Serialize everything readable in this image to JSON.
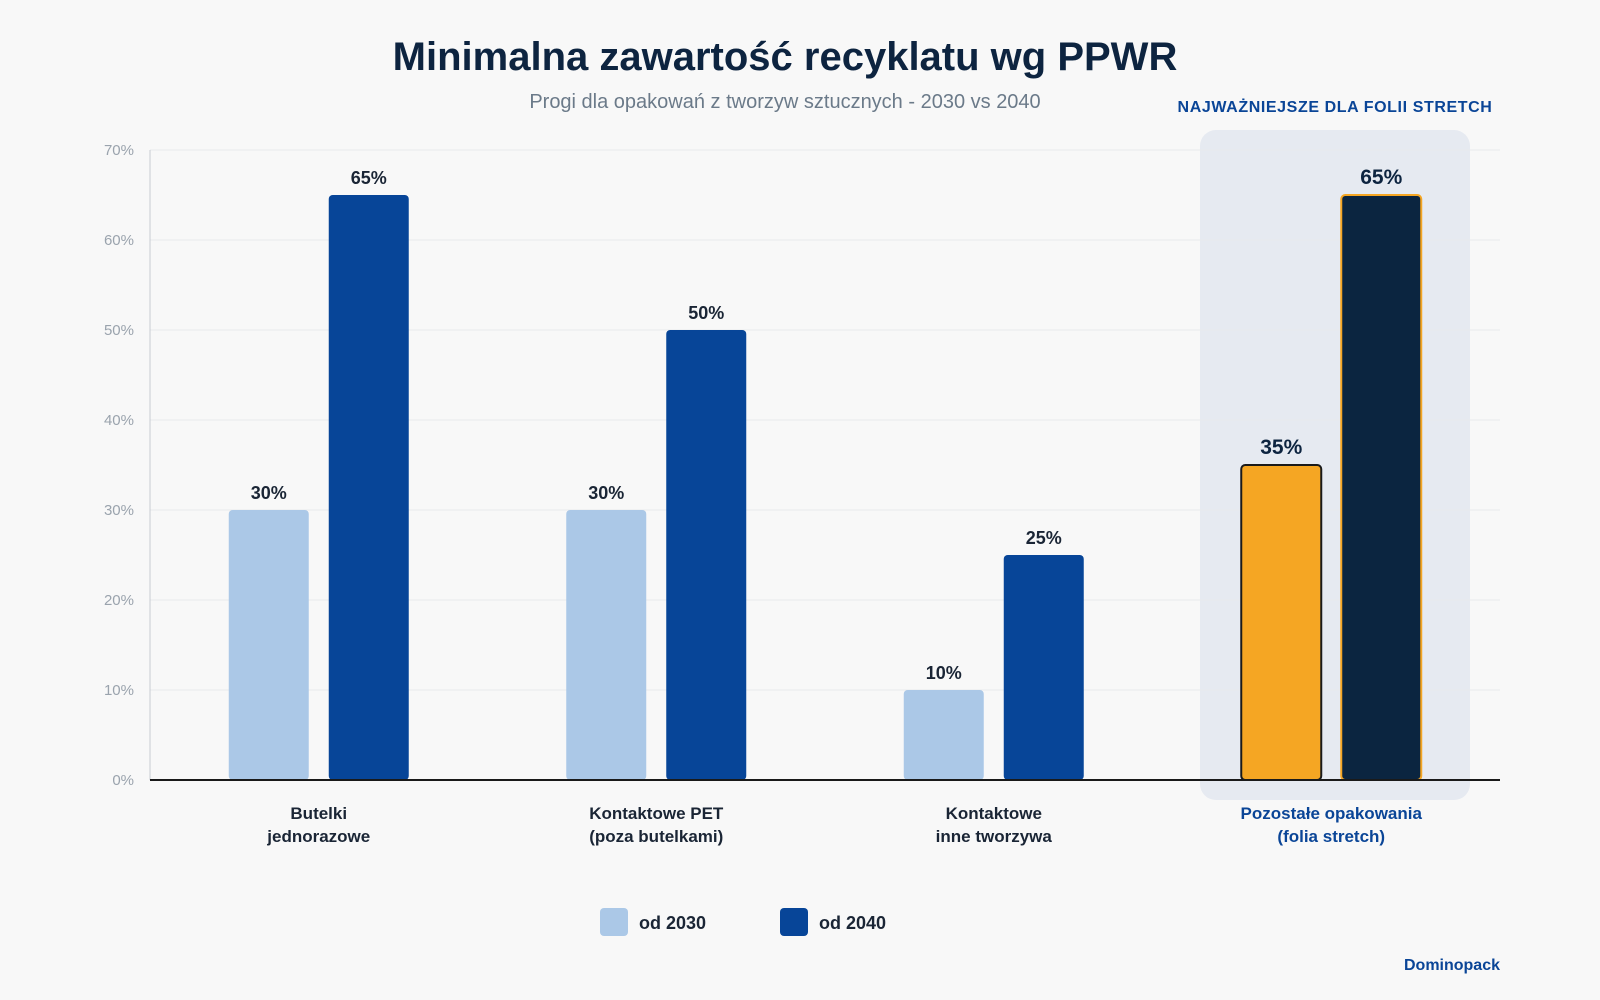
{
  "header": {
    "title": "Minimalna zawartość recyklatu wg PPWR",
    "subtitle": "Progi dla opakowań z tworzyw sztucznych - 2030 vs 2040"
  },
  "highlight": {
    "caption": "NAJWAŻNIEJSZE DLA FOLII STRETCH",
    "category_index": 3,
    "colors": {
      "series_2030": "#f5a623",
      "series_2040": "#0b2540",
      "border": "#1a1a1a",
      "border_2040": "#f5a623",
      "band": "#e6eaf1",
      "label": "#0a4597"
    }
  },
  "legend": {
    "placement": "bottom-center",
    "items": [
      {
        "label": "od 2030",
        "color": "#abc8e7"
      },
      {
        "label": "od 2040",
        "color": "#074598"
      }
    ]
  },
  "brand": "Dominopack",
  "chart_data": {
    "type": "bar",
    "title": "Minimalna zawartość recyklatu wg PPWR",
    "subtitle": "Progi dla opakowań z tworzyw sztucznych - 2030 vs 2040",
    "categories": [
      "Butelki\njednorazowe",
      "Kontaktowe PET\n(poza butelkami)",
      "Kontaktowe\ninne tworzywa",
      "Pozostałe opakowania\n(folia stretch)"
    ],
    "series": [
      {
        "name": "od 2030",
        "values": [
          30,
          30,
          10,
          35
        ],
        "color": "#abc8e7"
      },
      {
        "name": "od 2040",
        "values": [
          65,
          50,
          25,
          65
        ],
        "color": "#074598"
      }
    ],
    "value_suffix": "%",
    "ylim": [
      0,
      70
    ],
    "yticks": [
      0,
      10,
      20,
      30,
      40,
      50,
      60,
      70
    ],
    "grid": true,
    "xlabel": "",
    "ylabel": ""
  }
}
